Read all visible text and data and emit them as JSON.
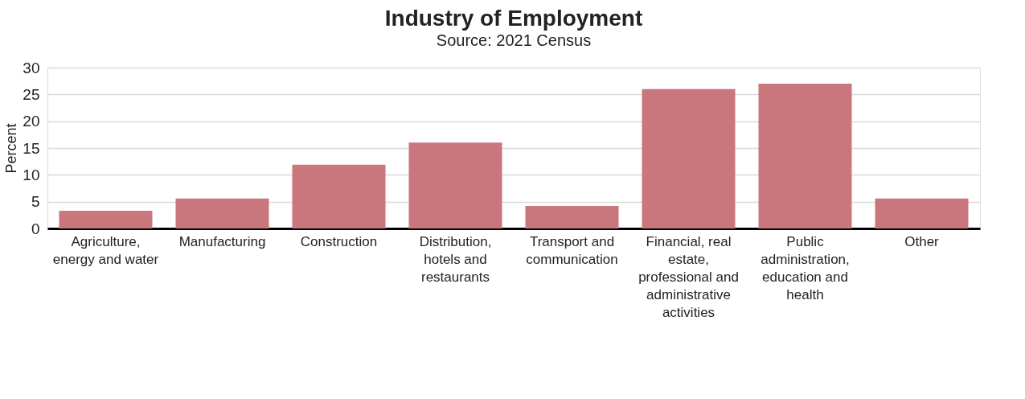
{
  "chart_data": {
    "type": "bar",
    "title": "Industry of Employment",
    "subtitle": "Source: 2021 Census",
    "ylabel": "Percent",
    "categories": [
      "Agriculture, energy and water",
      "Manufacturing",
      "Construction",
      "Distribution, hotels and restaurants",
      "Transport and communication",
      "Financial, real estate, professional and administrative activities",
      "Public administration, education and health",
      "Other"
    ],
    "values": [
      3.3,
      5.6,
      11.9,
      16.0,
      4.2,
      26.0,
      27.0,
      5.6
    ],
    "color": "#c9767d",
    "ylim": [
      0,
      30
    ],
    "yticks": [
      0,
      5,
      10,
      15,
      20,
      25,
      30
    ],
    "grid": "y"
  }
}
